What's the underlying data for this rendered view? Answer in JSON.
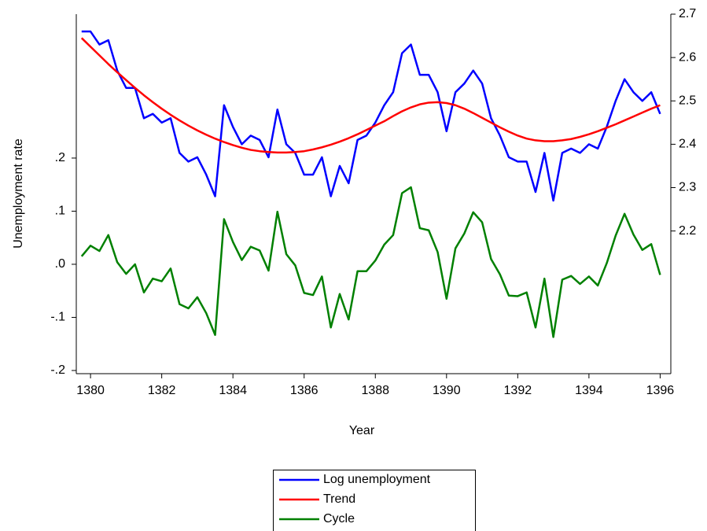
{
  "chart_data": {
    "type": "line",
    "x_label": "Year",
    "y_label": "Unemployment rate",
    "x": [
      1379.75,
      1380,
      1380.25,
      1380.5,
      1380.75,
      1381,
      1381.25,
      1381.5,
      1381.75,
      1382,
      1382.25,
      1382.5,
      1382.75,
      1383,
      1383.25,
      1383.5,
      1383.75,
      1384,
      1384.25,
      1384.5,
      1384.75,
      1385,
      1385.25,
      1385.5,
      1385.75,
      1386,
      1386.25,
      1386.5,
      1386.75,
      1387,
      1387.25,
      1387.5,
      1387.75,
      1388,
      1388.25,
      1388.5,
      1388.75,
      1389,
      1389.25,
      1389.5,
      1389.75,
      1390,
      1390.25,
      1390.5,
      1390.75,
      1391,
      1391.25,
      1391.5,
      1391.75,
      1392,
      1392.25,
      1392.5,
      1392.75,
      1393,
      1393.25,
      1393.5,
      1393.75,
      1394,
      1394.25,
      1394.5,
      1394.75,
      1395,
      1395.25,
      1395.5,
      1395.75,
      1396
    ],
    "xlim": [
      1379.6,
      1396.3
    ],
    "xticks": [
      1380,
      1382,
      1384,
      1386,
      1388,
      1390,
      1392,
      1394,
      1396
    ],
    "ylim": [
      -0.206,
      0.471
    ],
    "yticks": [
      {
        "value": -0.2,
        "label": "-.2"
      },
      {
        "value": -0.1,
        "label": "-.1"
      },
      {
        "value": 0,
        "label": ".0"
      },
      {
        "value": 0.1,
        "label": ".1"
      },
      {
        "value": 0.2,
        "label": ".2"
      }
    ],
    "y2lim": [
      1.871,
      2.7
    ],
    "y2ticks": [
      2.2,
      2.3,
      2.4,
      2.5,
      2.6,
      2.7
    ],
    "legend": "bottom",
    "series": [
      {
        "name": "Log unemployment",
        "color": "#0000ff",
        "axis": "y2",
        "values": [
          2.66,
          2.66,
          2.63,
          2.64,
          2.57,
          2.53,
          2.53,
          2.46,
          2.47,
          2.45,
          2.46,
          2.38,
          2.36,
          2.37,
          2.33,
          2.28,
          2.49,
          2.44,
          2.4,
          2.42,
          2.41,
          2.37,
          2.48,
          2.4,
          2.38,
          2.33,
          2.33,
          2.37,
          2.28,
          2.35,
          2.31,
          2.41,
          2.42,
          2.45,
          2.49,
          2.52,
          2.61,
          2.63,
          2.56,
          2.56,
          2.52,
          2.43,
          2.52,
          2.54,
          2.57,
          2.54,
          2.46,
          2.42,
          2.37,
          2.36,
          2.36,
          2.29,
          2.38,
          2.27,
          2.38,
          2.39,
          2.38,
          2.4,
          2.39,
          2.44,
          2.5,
          2.55,
          2.52,
          2.5,
          2.52,
          2.47
        ]
      },
      {
        "name": "Trend",
        "color": "#ff0000",
        "axis": "y2",
        "values": [
          2.645,
          2.625,
          2.605,
          2.585,
          2.566,
          2.548,
          2.53,
          2.513,
          2.497,
          2.482,
          2.468,
          2.455,
          2.443,
          2.432,
          2.422,
          2.413,
          2.405,
          2.398,
          2.392,
          2.387,
          2.384,
          2.382,
          2.381,
          2.381,
          2.382,
          2.384,
          2.388,
          2.393,
          2.399,
          2.406,
          2.414,
          2.423,
          2.433,
          2.443,
          2.453,
          2.465,
          2.476,
          2.485,
          2.492,
          2.496,
          2.497,
          2.495,
          2.49,
          2.482,
          2.472,
          2.461,
          2.45,
          2.439,
          2.429,
          2.42,
          2.413,
          2.409,
          2.407,
          2.407,
          2.409,
          2.412,
          2.417,
          2.423,
          2.43,
          2.438,
          2.446,
          2.455,
          2.464,
          2.473,
          2.482,
          2.49
        ]
      },
      {
        "name": "Cycle",
        "color": "#008000",
        "values": [
          0.015,
          0.035,
          0.025,
          0.055,
          0.004,
          -0.018,
          0,
          -0.053,
          -0.027,
          -0.032,
          -0.008,
          -0.075,
          -0.083,
          -0.062,
          -0.092,
          -0.133,
          0.085,
          0.042,
          0.008,
          0.033,
          0.026,
          -0.012,
          0.099,
          0.019,
          -0.002,
          -0.054,
          -0.058,
          -0.023,
          -0.119,
          -0.056,
          -0.104,
          -0.013,
          -0.013,
          0.007,
          0.037,
          0.055,
          0.134,
          0.145,
          0.068,
          0.064,
          0.023,
          -0.065,
          0.03,
          0.058,
          0.098,
          0.079,
          0.01,
          -0.019,
          -0.059,
          -0.06,
          -0.053,
          -0.119,
          -0.027,
          -0.137,
          -0.029,
          -0.022,
          -0.037,
          -0.023,
          -0.04,
          0.002,
          0.054,
          0.095,
          0.056,
          0.027,
          0.038,
          -0.02
        ]
      }
    ]
  }
}
